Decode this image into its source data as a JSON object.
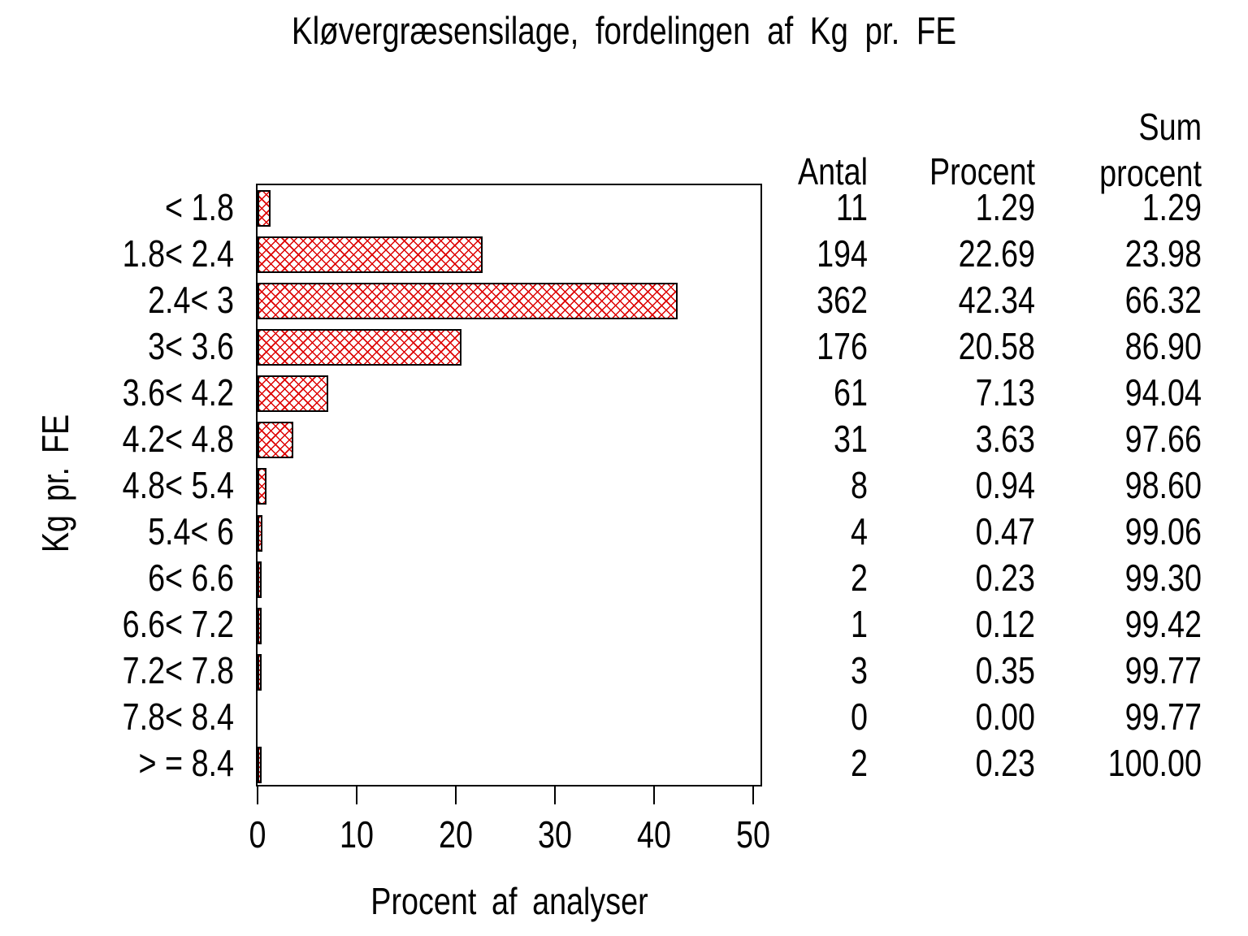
{
  "title": "Kløvergræsensilage, fordelingen af Kg pr. FE",
  "chart_data": {
    "type": "bar",
    "orientation": "horizontal",
    "title": "Kløvergræsensilage, fordelingen af Kg pr. FE",
    "xlabel": "Procent af analyser",
    "ylabel": "Kg pr. FE",
    "xlim": [
      0,
      51
    ],
    "x_ticks": [
      "0",
      "10",
      "20",
      "30",
      "40",
      "50"
    ],
    "grid": false,
    "legend": "none",
    "bar_pattern": "red-diagonal-crosshatch",
    "bar_pattern_color": "#dd0000",
    "bar_border_color": "#000000",
    "categories": [
      "< 1.8",
      "1.8< 2.4",
      "2.4< 3",
      "3< 3.6",
      "3.6< 4.2",
      "4.2< 4.8",
      "4.8< 5.4",
      "5.4< 6",
      "6< 6.6",
      "6.6< 7.2",
      "7.2< 7.8",
      "7.8< 8.4",
      "> = 8.4"
    ],
    "values": [
      1.29,
      22.69,
      42.34,
      20.58,
      7.13,
      3.63,
      0.94,
      0.47,
      0.23,
      0.12,
      0.35,
      0.0,
      0.23
    ],
    "counts": [
      11,
      194,
      362,
      176,
      61,
      31,
      8,
      4,
      2,
      1,
      3,
      0,
      2
    ],
    "cum_percent": [
      1.29,
      23.98,
      66.32,
      86.9,
      94.04,
      97.66,
      98.6,
      99.06,
      99.3,
      99.42,
      99.77,
      99.77,
      100.0
    ]
  },
  "table": {
    "header": {
      "antal": "Antal",
      "procent": "Procent",
      "sum_line1": "Sum",
      "sum_line2": "procent"
    },
    "rows": [
      {
        "antal": "11",
        "procent": "1.29",
        "sum": "1.29"
      },
      {
        "antal": "194",
        "procent": "22.69",
        "sum": "23.98"
      },
      {
        "antal": "362",
        "procent": "42.34",
        "sum": "66.32"
      },
      {
        "antal": "176",
        "procent": "20.58",
        "sum": "86.90"
      },
      {
        "antal": "61",
        "procent": "7.13",
        "sum": "94.04"
      },
      {
        "antal": "31",
        "procent": "3.63",
        "sum": "97.66"
      },
      {
        "antal": "8",
        "procent": "0.94",
        "sum": "98.60"
      },
      {
        "antal": "4",
        "procent": "0.47",
        "sum": "99.06"
      },
      {
        "antal": "2",
        "procent": "0.23",
        "sum": "99.30"
      },
      {
        "antal": "1",
        "procent": "0.12",
        "sum": "99.42"
      },
      {
        "antal": "3",
        "procent": "0.35",
        "sum": "99.77"
      },
      {
        "antal": "0",
        "procent": "0.00",
        "sum": "99.77"
      },
      {
        "antal": "2",
        "procent": "0.23",
        "sum": "100.00"
      }
    ]
  }
}
